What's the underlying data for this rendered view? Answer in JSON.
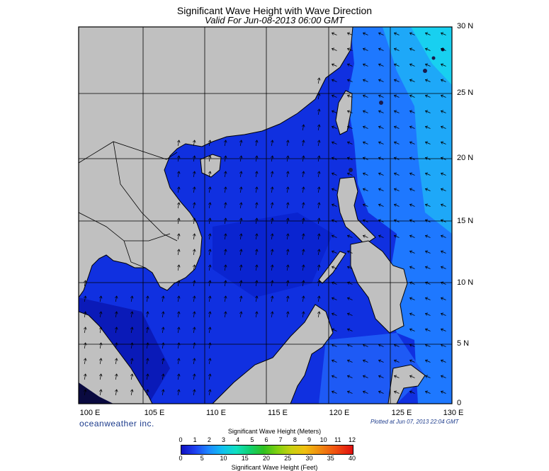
{
  "header": {
    "title": "Significant Wave Height with Wave Direction",
    "subtitle": "Valid For Jun-08-2013 06:00 GMT"
  },
  "map": {
    "lon_labels": [
      "100 E",
      "105 E",
      "110 E",
      "115 E",
      "120 E",
      "125 E",
      "130 E"
    ],
    "lat_labels": [
      "30 N",
      "25 N",
      "20 N",
      "15 N",
      "10 N",
      "5 N",
      "0"
    ],
    "land_color": "#c0c0c0",
    "sea_colors": [
      "#0a1ab8",
      "#1030e0",
      "#1e58f5",
      "#1e90ff",
      "#18c8f0"
    ]
  },
  "footer": {
    "brand": "oceanweather inc.",
    "plotted": "Plotted at Jun 07, 2013 22:04 GMT"
  },
  "colorbar": {
    "title": "Significant Wave Height (Meters)",
    "meter_ticks": [
      "0",
      "1",
      "2",
      "3",
      "4",
      "5",
      "6",
      "7",
      "8",
      "9",
      "10",
      "11",
      "12"
    ],
    "feet_ticks": [
      "0",
      "5",
      "10",
      "15",
      "20",
      "25",
      "30",
      "35",
      "40"
    ],
    "bottom_label": "Significant Wave Height (Feet)"
  }
}
